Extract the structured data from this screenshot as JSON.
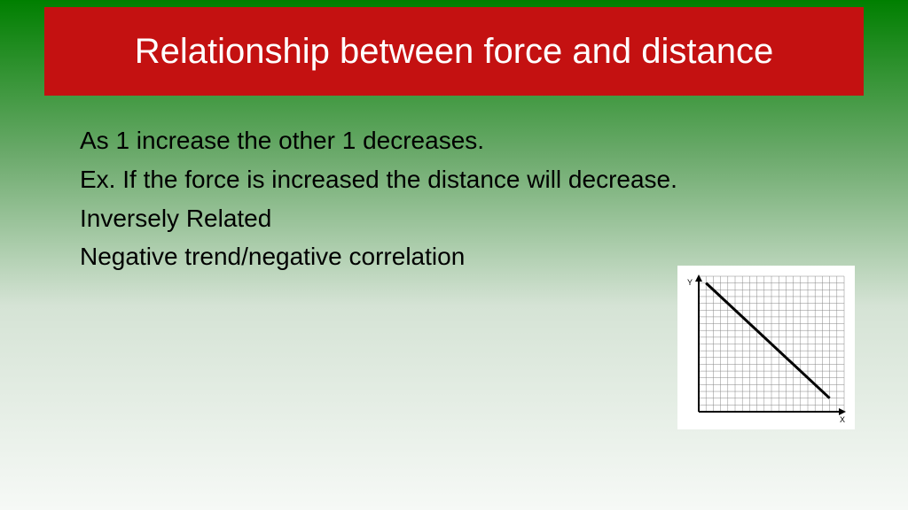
{
  "title": "Relationship between force and distance",
  "title_bar": {
    "background_color": "#c41111",
    "text_color": "#ffffff",
    "font_size_pt": 40
  },
  "body": {
    "lines": [
      "As 1 increase the other 1 decreases.",
      "Ex. If the force is increased the distance will decrease.",
      "Inversely Related",
      "Negative trend/negative correlation"
    ],
    "font_size_pt": 28,
    "text_color": "#000000"
  },
  "background": {
    "gradient_top": "#007f00",
    "gradient_bottom": "#f6f9f6"
  },
  "chart": {
    "type": "line",
    "x_label": "X",
    "y_label": "Y",
    "grid_count": 20,
    "grid_color": "#888888",
    "axis_color": "#000000",
    "line_color": "#000000",
    "line_width": 3,
    "background_color": "#ffffff",
    "xlim": [
      0,
      20
    ],
    "ylim": [
      0,
      20
    ],
    "data_points": [
      {
        "x": 1,
        "y": 19
      },
      {
        "x": 18,
        "y": 2
      }
    ]
  }
}
